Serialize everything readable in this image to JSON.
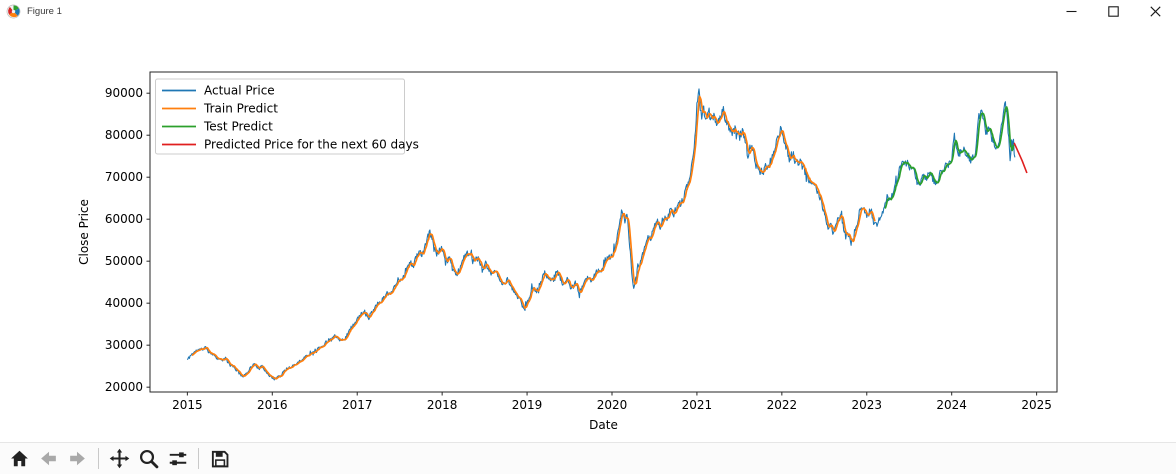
{
  "window": {
    "title": "Figure 1",
    "controls": [
      "minimize-icon",
      "maximize-icon",
      "close-icon"
    ]
  },
  "toolbar": {
    "icons": [
      "home",
      "back",
      "forward",
      "pan",
      "zoom-to-rect",
      "configure-subplots",
      "save"
    ],
    "disabled": [
      "back",
      "forward"
    ]
  },
  "chart_data": {
    "type": "line",
    "title": "",
    "xlabel": "Date",
    "ylabel": "Close Price",
    "x_ticks": [
      2015,
      2016,
      2017,
      2018,
      2019,
      2020,
      2021,
      2022,
      2023,
      2024,
      2025
    ],
    "y_ticks": [
      20000,
      30000,
      40000,
      50000,
      60000,
      70000,
      80000,
      90000
    ],
    "xlim": [
      2014.56,
      2025.24
    ],
    "ylim": [
      18850,
      95050
    ],
    "grid": false,
    "legend_position": "upper left",
    "colors": {
      "axes_edge": "#262626",
      "text": "#000000",
      "background": "#ffffff"
    },
    "series": [
      {
        "name": "Actual Price",
        "role": "actual",
        "color": "#1f77b4",
        "linewidth": 1.1,
        "anchors": [
          [
            2015.0,
            26500
          ],
          [
            2015.04,
            27600
          ],
          [
            2015.08,
            28300
          ],
          [
            2015.12,
            28800
          ],
          [
            2015.17,
            29000
          ],
          [
            2015.21,
            29500
          ],
          [
            2015.25,
            28500
          ],
          [
            2015.3,
            27900
          ],
          [
            2015.35,
            27000
          ],
          [
            2015.4,
            26400
          ],
          [
            2015.45,
            26800
          ],
          [
            2015.5,
            25300
          ],
          [
            2015.55,
            24700
          ],
          [
            2015.6,
            23600
          ],
          [
            2015.66,
            22400
          ],
          [
            2015.71,
            23700
          ],
          [
            2015.76,
            25100
          ],
          [
            2015.8,
            25500
          ],
          [
            2015.84,
            24400
          ],
          [
            2015.88,
            24900
          ],
          [
            2015.93,
            23700
          ],
          [
            2015.97,
            22700
          ],
          [
            2016.02,
            21900
          ],
          [
            2016.06,
            22500
          ],
          [
            2016.1,
            22700
          ],
          [
            2016.14,
            23800
          ],
          [
            2016.19,
            24600
          ],
          [
            2016.24,
            25100
          ],
          [
            2016.29,
            25700
          ],
          [
            2016.34,
            26400
          ],
          [
            2016.4,
            27400
          ],
          [
            2016.46,
            28300
          ],
          [
            2016.52,
            28900
          ],
          [
            2016.58,
            29700
          ],
          [
            2016.64,
            30800
          ],
          [
            2016.7,
            31900
          ],
          [
            2016.74,
            32300
          ],
          [
            2016.78,
            31700
          ],
          [
            2016.82,
            31300
          ],
          [
            2016.86,
            31500
          ],
          [
            2016.9,
            33300
          ],
          [
            2016.95,
            34700
          ],
          [
            2017.0,
            36000
          ],
          [
            2017.04,
            37300
          ],
          [
            2017.09,
            37900
          ],
          [
            2017.14,
            36800
          ],
          [
            2017.19,
            38500
          ],
          [
            2017.24,
            40000
          ],
          [
            2017.29,
            40500
          ],
          [
            2017.34,
            42500
          ],
          [
            2017.39,
            42000
          ],
          [
            2017.44,
            44200
          ],
          [
            2017.49,
            45300
          ],
          [
            2017.54,
            46200
          ],
          [
            2017.58,
            48300
          ],
          [
            2017.62,
            49900
          ],
          [
            2017.66,
            48600
          ],
          [
            2017.7,
            51500
          ],
          [
            2017.74,
            52400
          ],
          [
            2017.77,
            51200
          ],
          [
            2017.81,
            54400
          ],
          [
            2017.85,
            57000
          ],
          [
            2017.89,
            55000
          ],
          [
            2017.93,
            51600
          ],
          [
            2017.97,
            52400
          ],
          [
            2018.0,
            53000
          ],
          [
            2018.04,
            49500
          ],
          [
            2018.09,
            50900
          ],
          [
            2018.14,
            47500
          ],
          [
            2018.17,
            46900
          ],
          [
            2018.22,
            48600
          ],
          [
            2018.27,
            51700
          ],
          [
            2018.32,
            52000
          ],
          [
            2018.37,
            49900
          ],
          [
            2018.42,
            50600
          ],
          [
            2018.47,
            47900
          ],
          [
            2018.52,
            49100
          ],
          [
            2018.57,
            46600
          ],
          [
            2018.62,
            48300
          ],
          [
            2018.67,
            45600
          ],
          [
            2018.72,
            44300
          ],
          [
            2018.77,
            45700
          ],
          [
            2018.82,
            43600
          ],
          [
            2018.87,
            42100
          ],
          [
            2018.92,
            40600
          ],
          [
            2018.97,
            38500
          ],
          [
            2019.02,
            41000
          ],
          [
            2019.06,
            43700
          ],
          [
            2019.11,
            42700
          ],
          [
            2019.16,
            45000
          ],
          [
            2019.21,
            47400
          ],
          [
            2019.26,
            45200
          ],
          [
            2019.31,
            46700
          ],
          [
            2019.36,
            47400
          ],
          [
            2019.42,
            44500
          ],
          [
            2019.47,
            45700
          ],
          [
            2019.52,
            43300
          ],
          [
            2019.57,
            44800
          ],
          [
            2019.62,
            42300
          ],
          [
            2019.67,
            44600
          ],
          [
            2019.72,
            46200
          ],
          [
            2019.77,
            45400
          ],
          [
            2019.82,
            47900
          ],
          [
            2019.87,
            46900
          ],
          [
            2019.92,
            50200
          ],
          [
            2019.97,
            51000
          ],
          [
            2020.01,
            51900
          ],
          [
            2020.05,
            54100
          ],
          [
            2020.09,
            59000
          ],
          [
            2020.12,
            62300
          ],
          [
            2020.15,
            59600
          ],
          [
            2020.18,
            60700
          ],
          [
            2020.21,
            53500
          ],
          [
            2020.24,
            45500
          ],
          [
            2020.26,
            43200
          ],
          [
            2020.29,
            47200
          ],
          [
            2020.33,
            49300
          ],
          [
            2020.37,
            52100
          ],
          [
            2020.41,
            55700
          ],
          [
            2020.45,
            55200
          ],
          [
            2020.49,
            57400
          ],
          [
            2020.53,
            59800
          ],
          [
            2020.57,
            58300
          ],
          [
            2020.61,
            60500
          ],
          [
            2020.65,
            59500
          ],
          [
            2020.69,
            62400
          ],
          [
            2020.73,
            61300
          ],
          [
            2020.77,
            63000
          ],
          [
            2020.81,
            63700
          ],
          [
            2020.85,
            65600
          ],
          [
            2020.89,
            68100
          ],
          [
            2020.93,
            71600
          ],
          [
            2020.97,
            78000
          ],
          [
            2021.0,
            87000
          ],
          [
            2021.02,
            91500
          ],
          [
            2021.05,
            84200
          ],
          [
            2021.08,
            86400
          ],
          [
            2021.11,
            83100
          ],
          [
            2021.14,
            85600
          ],
          [
            2021.17,
            83600
          ],
          [
            2021.2,
            84700
          ],
          [
            2021.24,
            82600
          ],
          [
            2021.28,
            85100
          ],
          [
            2021.31,
            86000
          ],
          [
            2021.35,
            83100
          ],
          [
            2021.39,
            81600
          ],
          [
            2021.43,
            80500
          ],
          [
            2021.46,
            81500
          ],
          [
            2021.5,
            79300
          ],
          [
            2021.53,
            81300
          ],
          [
            2021.57,
            79100
          ],
          [
            2021.6,
            75200
          ],
          [
            2021.63,
            77200
          ],
          [
            2021.67,
            75800
          ],
          [
            2021.71,
            71600
          ],
          [
            2021.75,
            70900
          ],
          [
            2021.79,
            72700
          ],
          [
            2021.83,
            72000
          ],
          [
            2021.87,
            73900
          ],
          [
            2021.91,
            75800
          ],
          [
            2021.95,
            79100
          ],
          [
            2021.99,
            81500
          ],
          [
            2022.04,
            78100
          ],
          [
            2022.09,
            74300
          ],
          [
            2022.13,
            75600
          ],
          [
            2022.17,
            73100
          ],
          [
            2022.21,
            73900
          ],
          [
            2022.27,
            71500
          ],
          [
            2022.33,
            69100
          ],
          [
            2022.37,
            67900
          ],
          [
            2022.43,
            66700
          ],
          [
            2022.47,
            63800
          ],
          [
            2022.51,
            60700
          ],
          [
            2022.54,
            57600
          ],
          [
            2022.57,
            58800
          ],
          [
            2022.61,
            56600
          ],
          [
            2022.65,
            59800
          ],
          [
            2022.7,
            60500
          ],
          [
            2022.73,
            57800
          ],
          [
            2022.78,
            56400
          ],
          [
            2022.82,
            54000
          ],
          [
            2022.87,
            57800
          ],
          [
            2022.92,
            62200
          ],
          [
            2022.95,
            63000
          ],
          [
            2023.0,
            60700
          ],
          [
            2023.05,
            62200
          ],
          [
            2023.08,
            59500
          ],
          [
            2023.11,
            58300
          ],
          [
            2023.15,
            60500
          ],
          [
            2023.19,
            61200
          ],
          [
            2023.23,
            65300
          ],
          [
            2023.27,
            64300
          ],
          [
            2023.31,
            65800
          ],
          [
            2023.35,
            68400
          ],
          [
            2023.39,
            72000
          ],
          [
            2023.43,
            73200
          ],
          [
            2023.47,
            73700
          ],
          [
            2023.51,
            72000
          ],
          [
            2023.55,
            72500
          ],
          [
            2023.59,
            69100
          ],
          [
            2023.63,
            68400
          ],
          [
            2023.67,
            70600
          ],
          [
            2023.71,
            69800
          ],
          [
            2023.74,
            71300
          ],
          [
            2023.78,
            69100
          ],
          [
            2023.82,
            68600
          ],
          [
            2023.86,
            70800
          ],
          [
            2023.9,
            72000
          ],
          [
            2023.94,
            73700
          ],
          [
            2023.97,
            72700
          ],
          [
            2024.0,
            74500
          ],
          [
            2024.03,
            79700
          ],
          [
            2024.07,
            76200
          ],
          [
            2024.11,
            75800
          ],
          [
            2024.15,
            76800
          ],
          [
            2024.18,
            75000
          ],
          [
            2024.22,
            74500
          ],
          [
            2024.26,
            74400
          ],
          [
            2024.29,
            77700
          ],
          [
            2024.32,
            84300
          ],
          [
            2024.35,
            86200
          ],
          [
            2024.38,
            82900
          ],
          [
            2024.41,
            79100
          ],
          [
            2024.44,
            82000
          ],
          [
            2024.47,
            79300
          ],
          [
            2024.51,
            76700
          ],
          [
            2024.54,
            77400
          ],
          [
            2024.57,
            80300
          ],
          [
            2024.6,
            84000
          ],
          [
            2024.63,
            88800
          ],
          [
            2024.65,
            84600
          ],
          [
            2024.67,
            80000
          ],
          [
            2024.69,
            73600
          ],
          [
            2024.71,
            77600
          ],
          [
            2024.73,
            78300
          ],
          [
            2024.75,
            72000
          ]
        ]
      },
      {
        "name": "Train Predict",
        "role": "train",
        "color": "#ff7f0e",
        "linewidth": 1.7,
        "range": [
          2015.05,
          2023.1
        ]
      },
      {
        "name": "Test Predict",
        "role": "test",
        "color": "#2ca02c",
        "linewidth": 1.7,
        "range": [
          2023.21,
          2024.735
        ]
      },
      {
        "name": "Predicted Price for the next 60 days",
        "role": "forecast",
        "color": "#e01f1f",
        "linewidth": 1.6,
        "points": [
          [
            2024.735,
            78200
          ],
          [
            2024.78,
            76200
          ],
          [
            2024.83,
            73900
          ],
          [
            2024.885,
            71000
          ]
        ]
      }
    ],
    "reconstruction": {
      "seed": 11,
      "step_years": 0.008,
      "noise_frac": 0.014,
      "spike_prob": 0.05,
      "spike_mult": 2.4,
      "smooth_window": 5
    }
  }
}
